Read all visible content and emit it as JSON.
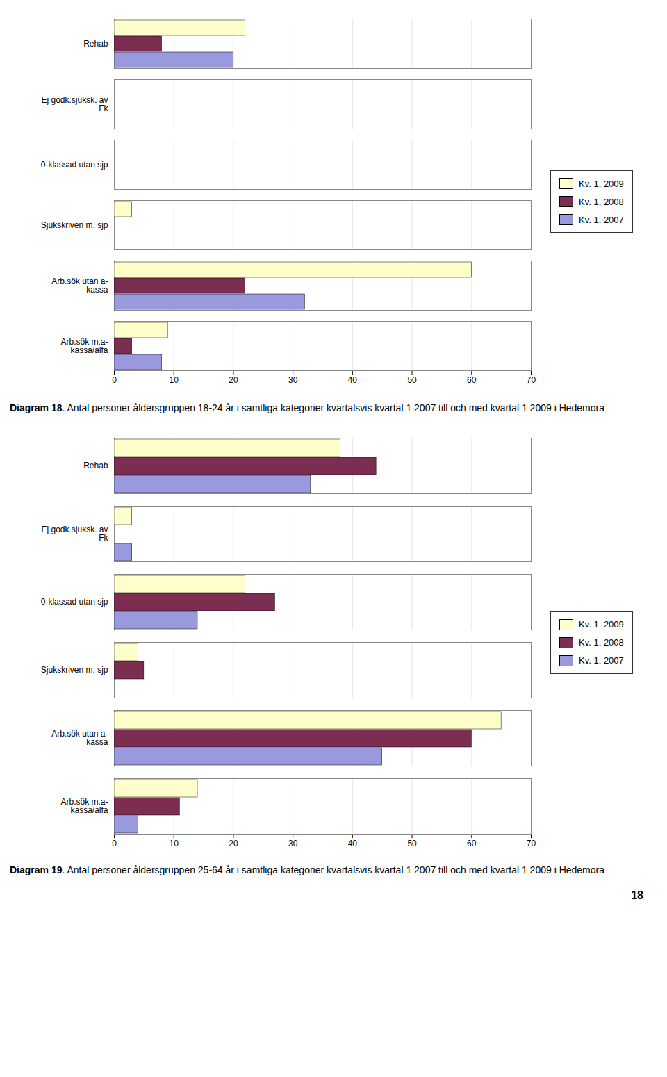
{
  "chart_data": [
    {
      "type": "bar",
      "orientation": "horizontal",
      "caption": "Diagram 18. Antal personer åldersgruppen 18-24 år i samtliga kategorier kvartalsvis kvartal 1 2007 till och med kvartal 1 2009 i Hedemora",
      "categories": [
        "Rehab",
        "Ej godk.sjuksk. av\nFk",
        "0-klassad utan sjp",
        "Sjukskriven m. sjp",
        "Arb.sök utan a-\nkassa",
        "Arb.sök m.a-\nkassa/alfa"
      ],
      "series": [
        {
          "name": "Kv. 1. 2009",
          "color": "#FFFFCC",
          "values": [
            22,
            0,
            0,
            3,
            60,
            9
          ]
        },
        {
          "name": "Kv. 1. 2008",
          "color": "#7B2D52",
          "values": [
            8,
            0,
            0,
            0,
            22,
            3
          ]
        },
        {
          "name": "Kv. 1. 2007",
          "color": "#9999DD",
          "values": [
            20,
            0,
            0,
            0,
            32,
            8
          ]
        }
      ],
      "xlim": [
        0,
        70
      ],
      "xticks": [
        0,
        10,
        20,
        30,
        40,
        50,
        60,
        70
      ],
      "grid": true,
      "legend": "right"
    },
    {
      "type": "bar",
      "orientation": "horizontal",
      "caption": "Diagram 19. Antal personer åldersgruppen 25-64 år i samtliga kategorier kvartalsvis kvartal 1 2007 till och med kvartal 1 2009 i Hedemora",
      "categories": [
        "Rehab",
        "Ej godk.sjuksk. av\nFk",
        "0-klassad utan sjp",
        "Sjukskriven m. sjp",
        "Arb.sök utan a-\nkassa",
        "Arb.sök m.a-\nkassa/alfa"
      ],
      "series": [
        {
          "name": "Kv. 1. 2009",
          "color": "#FFFFCC",
          "values": [
            38,
            3,
            22,
            4,
            65,
            14
          ]
        },
        {
          "name": "Kv. 1. 2008",
          "color": "#7B2D52",
          "values": [
            44,
            0,
            27,
            5,
            60,
            11
          ]
        },
        {
          "name": "Kv. 1. 2007",
          "color": "#9999DD",
          "values": [
            33,
            3,
            14,
            0,
            45,
            4
          ]
        }
      ],
      "xlim": [
        0,
        70
      ],
      "xticks": [
        0,
        10,
        20,
        30,
        40,
        50,
        60,
        70
      ],
      "grid": true,
      "legend": "right",
      "annotations": [
        "18"
      ]
    }
  ]
}
